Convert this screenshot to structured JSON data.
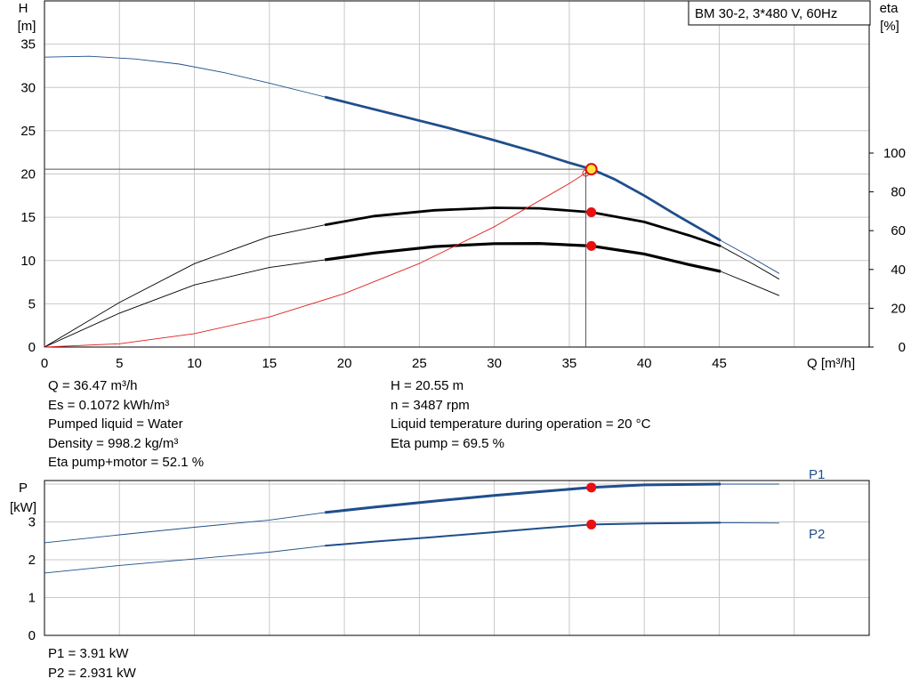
{
  "chart_data": [
    {
      "type": "line",
      "title": "BM 30-2, 3*480 V, 60Hz",
      "xlabel": "Q [m³/h]",
      "ylabel_left": [
        "H",
        "[m]"
      ],
      "ylabel_right": [
        "eta",
        "[%]"
      ],
      "xlim": [
        0,
        55
      ],
      "ylim_left": [
        0,
        40
      ],
      "ylim_right": [
        0,
        100
      ],
      "x_ticks": [
        0,
        5,
        10,
        15,
        20,
        25,
        30,
        35,
        40,
        45
      ],
      "y_ticks_left": [
        0,
        5,
        10,
        15,
        20,
        25,
        30,
        35
      ],
      "y_ticks_right": [
        0,
        20,
        40,
        60,
        80,
        100
      ],
      "grid": true,
      "series": [
        {
          "axis": "left",
          "color": "#1f4e8c",
          "points": [
            [
              0,
              33.5
            ],
            [
              3,
              33.6
            ],
            [
              6,
              33.3
            ],
            [
              9,
              32.7
            ],
            [
              12,
              31.7
            ],
            [
              15,
              30.5
            ],
            [
              18,
              29.2
            ],
            [
              21,
              27.9
            ],
            [
              24,
              26.6
            ],
            [
              27,
              25.3
            ],
            [
              30,
              23.9
            ],
            [
              33,
              22.4
            ],
            [
              35,
              21.3
            ],
            [
              36.5,
              20.55
            ],
            [
              38,
              19.4
            ],
            [
              40,
              17.5
            ],
            [
              42,
              15.4
            ],
            [
              44,
              13.4
            ],
            [
              45,
              12.4
            ],
            [
              47,
              10.5
            ],
            [
              49,
              8.5
            ]
          ],
          "op_range": [
            18.7,
            45.1
          ]
        },
        {
          "axis": "right",
          "color": "#000000",
          "points": [
            [
              0,
              0
            ],
            [
              5,
              23
            ],
            [
              10,
              43
            ],
            [
              15,
              57
            ],
            [
              18.7,
              63
            ],
            [
              22,
              67.5
            ],
            [
              26,
              70.5
            ],
            [
              30,
              71.8
            ],
            [
              33,
              71.5
            ],
            [
              36.47,
              69.5
            ],
            [
              40,
              64.5
            ],
            [
              43,
              57.5
            ],
            [
              45.1,
              52
            ],
            [
              47,
              44
            ],
            [
              49,
              35
            ]
          ],
          "op_range": [
            18.7,
            45.1
          ]
        },
        {
          "axis": "right",
          "color": "#000000",
          "points": [
            [
              0,
              0
            ],
            [
              5,
              17.5
            ],
            [
              10,
              32
            ],
            [
              15,
              41
            ],
            [
              18.7,
              45
            ],
            [
              22,
              48.5
            ],
            [
              26,
              51.8
            ],
            [
              30,
              53.3
            ],
            [
              33,
              53.4
            ],
            [
              36.47,
              52.1
            ],
            [
              40,
              48
            ],
            [
              43,
              42.5
            ],
            [
              45.1,
              39
            ],
            [
              47,
              33
            ],
            [
              49,
              26.5
            ]
          ],
          "op_range": [
            18.7,
            45.1
          ]
        },
        {
          "axis": "left",
          "color": "#e02020",
          "points": [
            [
              0,
              0
            ],
            [
              5,
              0.38
            ],
            [
              10,
              1.55
            ],
            [
              15,
              3.48
            ],
            [
              20,
              6.18
            ],
            [
              25,
              9.66
            ],
            [
              30,
              13.9
            ],
            [
              35,
              18.9
            ],
            [
              36.47,
              20.55
            ]
          ]
        }
      ],
      "duty_point": {
        "x": 36.47,
        "y": 20.55
      }
    },
    {
      "type": "line",
      "ylabel": [
        "P",
        "[kW]"
      ],
      "xlim": [
        0,
        55
      ],
      "ylim": [
        0,
        4
      ],
      "y_ticks": [
        0,
        1,
        2,
        3
      ],
      "grid": true,
      "series": [
        {
          "name": "P1",
          "color": "#1f4e8c",
          "points": [
            [
              0,
              2.45
            ],
            [
              5,
              2.66
            ],
            [
              10,
              2.86
            ],
            [
              15,
              3.05
            ],
            [
              18.7,
              3.25
            ],
            [
              22,
              3.39
            ],
            [
              26,
              3.55
            ],
            [
              30,
              3.7
            ],
            [
              33,
              3.8
            ],
            [
              36.47,
              3.91
            ],
            [
              40,
              3.98
            ],
            [
              45.1,
              4.0
            ],
            [
              49,
              4.0
            ]
          ],
          "op_range": [
            18.7,
            45.1
          ]
        },
        {
          "name": "P2",
          "color": "#1f4e8c",
          "points": [
            [
              0,
              1.65
            ],
            [
              5,
              1.85
            ],
            [
              10,
              2.02
            ],
            [
              15,
              2.2
            ],
            [
              18.7,
              2.37
            ],
            [
              22,
              2.48
            ],
            [
              26,
              2.6
            ],
            [
              30,
              2.73
            ],
            [
              33,
              2.83
            ],
            [
              36.47,
              2.931
            ],
            [
              40,
              2.96
            ],
            [
              45.1,
              2.98
            ],
            [
              49,
              2.97
            ]
          ],
          "op_range": [
            18.7,
            45.1
          ]
        }
      ]
    }
  ],
  "info": {
    "col1": [
      "Q = 36.47 m³/h",
      "Es = 0.1072 kWh/m³",
      "Pumped liquid = Water",
      "Density = 998.2 kg/m³",
      "Eta pump+motor = 52.1 %"
    ],
    "col2": [
      "H = 20.55 m",
      "n = 3487 rpm",
      "Liquid temperature during operation = 20 °C",
      "Eta pump = 69.5 %"
    ]
  },
  "power_readout": [
    "P1 = 3.91 kW",
    "P2 = 2.931 kW"
  ]
}
